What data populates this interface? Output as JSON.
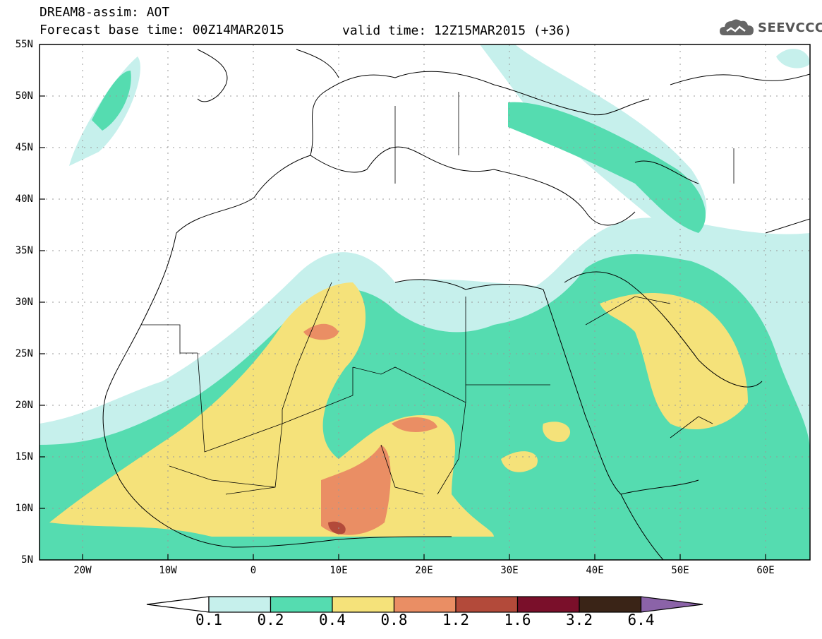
{
  "header": {
    "title": "DREAM8-assim: AOT",
    "forecast_base": "Forecast base time: 00Z14MAR2015",
    "valid_time": "valid time: 12Z15MAR2015 (+36)"
  },
  "logo": {
    "text": "SEEVCCC",
    "icon": "cloud-icon"
  },
  "map": {
    "lat_labels": [
      "55N",
      "50N",
      "45N",
      "40N",
      "35N",
      "30N",
      "25N",
      "20N",
      "15N",
      "10N",
      "5N"
    ],
    "lon_labels": [
      "20W",
      "10W",
      "0",
      "10E",
      "20E",
      "30E",
      "40E",
      "50E",
      "60E"
    ]
  },
  "colorbar": {
    "labels": [
      "0.1",
      "0.2",
      "0.4",
      "0.8",
      "1.2",
      "1.6",
      "3.2",
      "6.4"
    ],
    "colors": [
      "#c6f0ec",
      "#55dcb0",
      "#f5e27a",
      "#ea8e64",
      "#b34a3a",
      "#7a0f2a",
      "#3a2417",
      "#8b63a8"
    ]
  }
}
